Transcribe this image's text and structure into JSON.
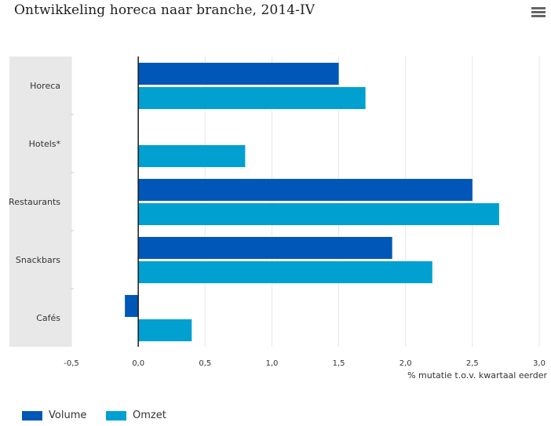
{
  "header": {
    "title": "Ontwikkeling horeca naar branche, 2014-IV",
    "menu_icon": "hamburger-menu-icon"
  },
  "colors": {
    "volume": "#0057b8",
    "omzet": "#00a0d0",
    "category_band": "#e8e8e8",
    "gridline": "#e6e6e6",
    "axis": "#1a1a1a"
  },
  "chart_data": {
    "type": "bar",
    "orientation": "horizontal",
    "title": "Ontwikkeling horeca naar branche, 2014-IV",
    "xlabel": "% mutatie t.o.v. kwartaal eerder",
    "ylabel": "",
    "categories": [
      "Horeca",
      "Hotels*",
      "Restaurants",
      "Snackbars",
      "Cafés"
    ],
    "series": [
      {
        "name": "Volume",
        "values": [
          1.5,
          null,
          2.5,
          1.9,
          -0.1
        ]
      },
      {
        "name": "Omzet",
        "values": [
          1.7,
          0.8,
          2.7,
          2.2,
          0.4
        ]
      }
    ],
    "xlim": [
      -0.5,
      3.0
    ],
    "xticks": [
      -0.5,
      0.0,
      0.5,
      1.0,
      1.5,
      2.0,
      2.5,
      3.0
    ],
    "xtick_labels": [
      "-0,5",
      "0,0",
      "0,5",
      "1,0",
      "1,5",
      "2,0",
      "2,5",
      "3,0"
    ],
    "grid": true,
    "legend_position": "bottom-left"
  }
}
